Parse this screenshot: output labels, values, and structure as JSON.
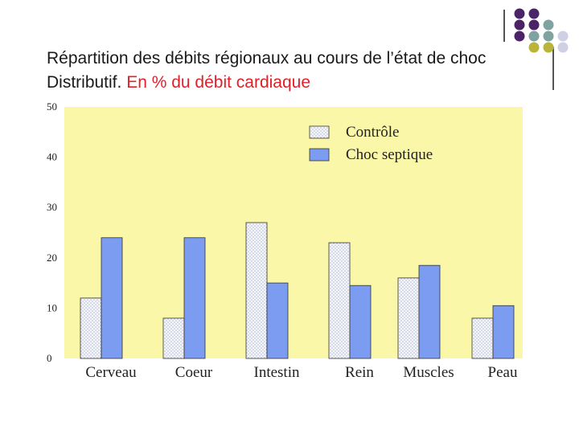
{
  "slide": {
    "title_line1": "Répartition des débits régionaux au cours de l’état de choc",
    "title_line2_black": "Distributif.",
    "title_line2_red": " En % du débit cardiaque",
    "colors": {
      "title_accent": "#e0202a",
      "deco_purple": "#4b2468",
      "deco_teal": "#7fa3a0",
      "deco_olive": "#b9b43a",
      "deco_lavender": "#cfcfe6"
    }
  },
  "chart_data": {
    "type": "bar",
    "categories": [
      "Cerveau",
      "Coeur",
      "Intestin",
      "Rein",
      "Muscles",
      "Peau"
    ],
    "series": [
      {
        "name": "Contrôle",
        "values": [
          12,
          8,
          27,
          23,
          16,
          8
        ],
        "color": "#f2f4fa",
        "pattern": "dotted"
      },
      {
        "name": "Choc septique",
        "values": [
          24,
          24,
          15,
          14.5,
          18.5,
          10.5
        ],
        "color": "#7b9cf0"
      }
    ],
    "yticks": [
      0,
      10,
      20,
      30,
      40,
      50
    ],
    "ylim": [
      0,
      50
    ],
    "plot_background": "#fbf7a8",
    "legend_position": "top-right",
    "grid": false
  }
}
